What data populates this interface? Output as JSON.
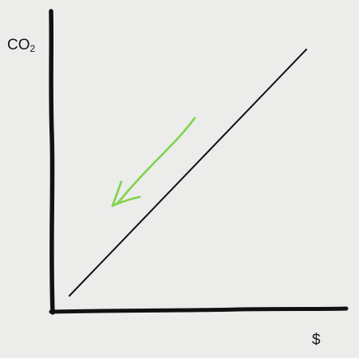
{
  "diagram": {
    "y_axis_label": {
      "main": "CO",
      "subscript": "2"
    },
    "x_axis_label": "$",
    "colors": {
      "background": "#ececeb",
      "ink": "#111111",
      "arrow": "#7fd34a"
    },
    "arrow_direction": "down-left"
  }
}
